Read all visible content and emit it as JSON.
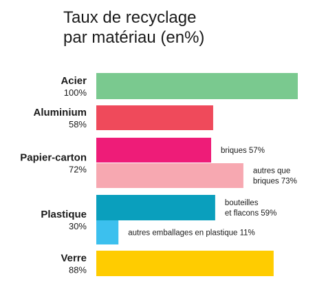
{
  "chart_data": {
    "type": "bar",
    "orientation": "horizontal",
    "title": "Taux de recyclage par matériau (en%)",
    "title_lines": [
      "Taux de recyclage",
      "par matériau (en%)"
    ],
    "xlim": [
      0,
      100
    ],
    "grid": false,
    "categories": [
      {
        "name": "Acier",
        "total_label": "100%",
        "bars": [
          {
            "value": 100,
            "label_lines": [],
            "color": "#7ac98f"
          }
        ]
      },
      {
        "name": "Aluminium",
        "total_label": "58%",
        "bars": [
          {
            "value": 58,
            "label_lines": [],
            "color": "#ef4a5b"
          }
        ]
      },
      {
        "name": "Papier-carton",
        "total_label": "72%",
        "bars": [
          {
            "value": 57,
            "label_lines": [
              "briques 57%"
            ],
            "color": "#ee1c78"
          },
          {
            "value": 73,
            "label_lines": [
              "autres que",
              "briques 73%"
            ],
            "color": "#f7a8b1"
          }
        ]
      },
      {
        "name": "Plastique",
        "total_label": "30%",
        "bars": [
          {
            "value": 59,
            "label_lines": [
              "bouteilles",
              "et flacons 59%"
            ],
            "color": "#0a9fbd"
          },
          {
            "value": 11,
            "label_lines": [
              "autres emballages en plastique 11%"
            ],
            "color": "#3cc0ee"
          }
        ]
      },
      {
        "name": "Verre",
        "total_label": "88%",
        "bars": [
          {
            "value": 88,
            "label_lines": [],
            "color": "#ffcc00"
          }
        ]
      }
    ]
  }
}
